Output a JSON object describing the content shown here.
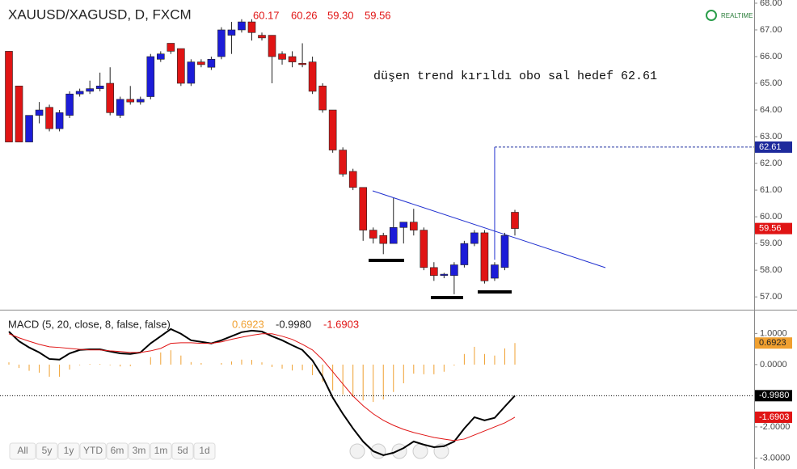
{
  "chart_data": [
    {
      "type": "candlestick",
      "title": "XAUUSD/XAGUSD, D, FXCM",
      "header_values": [
        "60.17",
        "60.26",
        "59.30",
        "59.56"
      ],
      "realtime_label": "REALTIME",
      "annotation": "düşen trend kırıldı obo sal hedef 62.61",
      "up_color": "#1c1cd8",
      "down_color": "#e01414",
      "open": [
        66.2,
        64.9,
        62.8,
        63.8,
        64.1,
        63.3,
        63.8,
        64.6,
        64.7,
        64.8,
        65.0,
        63.8,
        64.4,
        64.3,
        64.5,
        65.9,
        66.5,
        66.3,
        65.0,
        65.8,
        65.6,
        66.0,
        66.8,
        67.0,
        67.3,
        66.8,
        66.8,
        66.1,
        66.0,
        65.75,
        65.8,
        64.9,
        64.0,
        62.5,
        61.7,
        61.1,
        59.5,
        59.3,
        59.0,
        59.6,
        59.8,
        59.5,
        58.1,
        57.8,
        57.8,
        58.2,
        59.0,
        59.4,
        57.7,
        58.1,
        60.17
      ],
      "high": [
        66.2,
        64.9,
        63.8,
        64.3,
        64.2,
        64.0,
        64.7,
        64.8,
        65.1,
        65.4,
        65.6,
        64.5,
        64.9,
        64.5,
        66.1,
        66.2,
        66.5,
        66.3,
        65.9,
        65.9,
        66.0,
        67.1,
        67.3,
        67.4,
        67.4,
        66.9,
        66.8,
        66.2,
        66.2,
        66.5,
        66.0,
        65.0,
        64.0,
        62.6,
        61.8,
        61.1,
        59.6,
        59.4,
        60.7,
        59.8,
        60.3,
        59.6,
        58.3,
        57.9,
        58.3,
        59.1,
        59.5,
        59.5,
        58.3,
        59.4,
        60.26
      ],
      "low": [
        62.8,
        62.8,
        62.8,
        63.5,
        63.2,
        63.2,
        63.7,
        64.5,
        64.6,
        64.7,
        63.8,
        63.7,
        64.2,
        64.2,
        64.4,
        65.8,
        66.1,
        64.9,
        64.9,
        65.6,
        65.5,
        65.9,
        66.1,
        66.9,
        66.6,
        66.6,
        65.0,
        65.7,
        65.6,
        65.6,
        64.6,
        63.9,
        62.4,
        61.5,
        61.0,
        59.1,
        59.0,
        58.6,
        59.0,
        59.0,
        59.3,
        58.0,
        57.6,
        57.7,
        57.1,
        58.1,
        58.9,
        57.5,
        57.6,
        58.0,
        59.3
      ],
      "close": [
        62.8,
        62.8,
        63.8,
        64.0,
        63.3,
        63.9,
        64.6,
        64.7,
        64.8,
        64.9,
        63.9,
        64.4,
        64.3,
        64.4,
        66.0,
        66.1,
        66.2,
        65.0,
        65.8,
        65.7,
        65.9,
        67.0,
        67.0,
        67.3,
        66.9,
        66.7,
        66.0,
        65.9,
        65.8,
        65.7,
        64.7,
        64.0,
        62.5,
        61.6,
        61.1,
        59.5,
        59.2,
        59.0,
        59.6,
        59.8,
        59.5,
        58.1,
        57.8,
        57.85,
        58.2,
        59.0,
        59.4,
        57.6,
        58.2,
        59.3,
        59.56
      ],
      "target_line": {
        "value": 62.61,
        "label": "62.61"
      },
      "ylim": [
        56.52,
        68.12
      ],
      "yticks": [
        {
          "value": 57,
          "label": "57.00"
        },
        {
          "value": 58,
          "label": "58.00"
        },
        {
          "value": 59,
          "label": "59.00"
        },
        {
          "value": 60,
          "label": "60.00"
        },
        {
          "value": 61,
          "label": "61.00"
        },
        {
          "value": 62,
          "label": "62.00"
        },
        {
          "value": 63,
          "label": "63.00"
        },
        {
          "value": 64,
          "label": "64.00"
        },
        {
          "value": 65,
          "label": "65.00"
        },
        {
          "value": 66,
          "label": "66.00"
        },
        {
          "value": 67,
          "label": "67.00"
        },
        {
          "value": 68,
          "label": "68.00"
        }
      ],
      "range_buttons": [
        "All",
        "5y",
        "1y",
        "YTD",
        "6m",
        "3m",
        "1m",
        "5d",
        "1d"
      ]
    },
    {
      "type": "macd",
      "title": "MACD (5, 20, close, 8, false, false)",
      "header_values": [
        "0.6923",
        "-0.9980",
        "-1.6903"
      ],
      "ylim": [
        -3.3,
        1.71
      ],
      "yticks": [
        {
          "value": 1,
          "label": "1.0000"
        },
        {
          "value": 0,
          "label": "0.0000"
        },
        {
          "value": -2,
          "label": "-2.0000"
        },
        {
          "value": -3,
          "label": "-3.0000"
        }
      ],
      "series": [
        {
          "name": "Histogram",
          "color": "#f0a030",
          "values": [
            0.07,
            -0.11,
            -0.2,
            -0.26,
            -0.39,
            -0.39,
            -0.16,
            -0.02,
            0.02,
            0.02,
            -0.02,
            -0.06,
            -0.05,
            0.0,
            0.24,
            0.39,
            0.46,
            0.29,
            0.08,
            0.05,
            0.0,
            0.05,
            0.1,
            0.16,
            0.15,
            0.07,
            -0.08,
            -0.13,
            -0.19,
            -0.18,
            -0.34,
            -0.55,
            -0.83,
            -0.96,
            -1.04,
            -1.15,
            -1.2,
            -1.12,
            -0.88,
            -0.6,
            -0.29,
            -0.31,
            -0.31,
            -0.23,
            -0.03,
            0.34,
            0.57,
            0.34,
            0.29,
            0.52,
            0.6923
          ]
        },
        {
          "name": "MACD",
          "color": "#000000",
          "values": [
            1.06,
            0.75,
            0.55,
            0.39,
            0.18,
            0.16,
            0.36,
            0.47,
            0.49,
            0.49,
            0.42,
            0.36,
            0.34,
            0.39,
            0.68,
            0.91,
            1.14,
            0.99,
            0.78,
            0.73,
            0.68,
            0.78,
            0.91,
            1.04,
            1.09,
            1.06,
            0.91,
            0.78,
            0.62,
            0.47,
            0.13,
            -0.39,
            -1.06,
            -1.58,
            -2.05,
            -2.47,
            -2.78,
            -2.91,
            -2.83,
            -2.68,
            -2.47,
            -2.57,
            -2.65,
            -2.62,
            -2.47,
            -2.05,
            -1.69,
            -1.79,
            -1.71,
            -1.35,
            -0.998
          ]
        },
        {
          "name": "Signal",
          "color": "#e01414",
          "values": [
            0.99,
            0.86,
            0.75,
            0.65,
            0.57,
            0.55,
            0.52,
            0.49,
            0.47,
            0.47,
            0.44,
            0.42,
            0.39,
            0.39,
            0.44,
            0.52,
            0.68,
            0.7,
            0.7,
            0.68,
            0.68,
            0.73,
            0.81,
            0.88,
            0.94,
            0.99,
            0.99,
            0.91,
            0.81,
            0.65,
            0.47,
            0.16,
            -0.23,
            -0.62,
            -1.01,
            -1.32,
            -1.58,
            -1.79,
            -1.95,
            -2.08,
            -2.18,
            -2.26,
            -2.34,
            -2.39,
            -2.44,
            -2.39,
            -2.26,
            -2.13,
            -2.0,
            -1.87,
            -1.6903
          ]
        }
      ]
    }
  ]
}
